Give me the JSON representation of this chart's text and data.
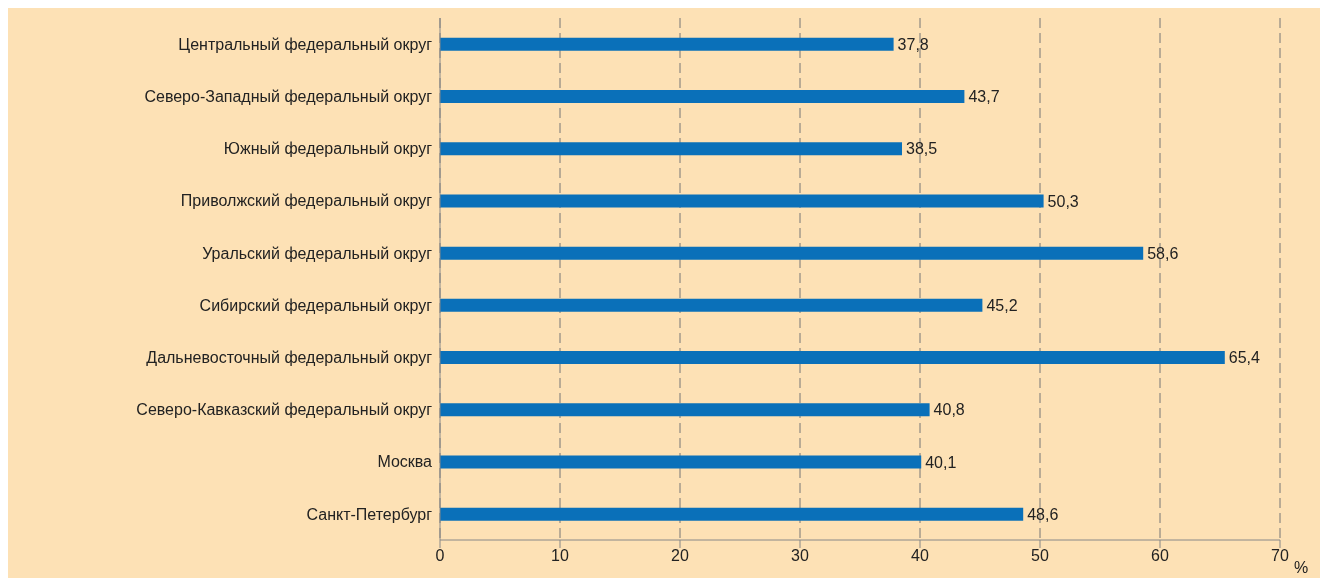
{
  "chart_data": {
    "type": "bar",
    "orientation": "horizontal",
    "xlabel": "%",
    "categories": [
      "Центральный федеральный округ",
      "Северо-Западный федеральный округ",
      "Южный федеральный округ",
      "Приволжский федеральный округ",
      "Уральский федеральный округ",
      "Сибирский федеральный округ",
      "Дальневосточный федеральный округ",
      "Северо-Кавказский федеральный округ",
      "Москва",
      "Санкт-Петербург"
    ],
    "values": [
      37.8,
      43.7,
      38.5,
      50.3,
      58.6,
      45.2,
      65.4,
      40.8,
      40.1,
      48.6
    ],
    "value_labels": [
      "37,8",
      "43,7",
      "38,5",
      "50,3",
      "58,6",
      "45,2",
      "65,4",
      "40,8",
      "40,1",
      "48,6"
    ],
    "color": "#0a70b9",
    "xlim": [
      0,
      70
    ],
    "xticks": [
      0,
      10,
      20,
      30,
      40,
      50,
      60,
      70
    ],
    "grid": "x",
    "legend": false
  }
}
